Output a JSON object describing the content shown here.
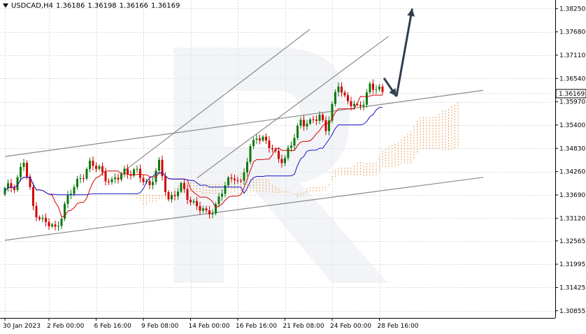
{
  "header": {
    "symbol": "USDCAD,H4",
    "open": "1.36186",
    "high": "1.36198",
    "low": "1.36166",
    "close": "1.36169"
  },
  "chart_data": {
    "type": "candlestick",
    "title": "",
    "y_ticks": [
      "1.38250",
      "1.37680",
      "1.37110",
      "1.36540",
      "1.35970",
      "1.35400",
      "1.34830",
      "1.34260",
      "1.33690",
      "1.33120",
      "1.32565",
      "1.31995",
      "1.31425",
      "1.30855"
    ],
    "ylim": [
      1.3068,
      1.3846
    ],
    "current_price": "1.36169",
    "x_ticks": [
      "30 Jan 2023",
      "2 Feb 00:00",
      "6 Feb 16:00",
      "9 Feb 08:00",
      "14 Feb 00:00",
      "16 Feb 16:00",
      "21 Feb 08:00",
      "24 Feb 00:00",
      "28 Feb 16:00"
    ],
    "n_bars": 121,
    "anchors": [
      [
        0,
        1.338
      ],
      [
        3,
        1.3395
      ],
      [
        6,
        1.345
      ],
      [
        9,
        1.334
      ],
      [
        12,
        1.3305
      ],
      [
        16,
        1.3285
      ],
      [
        20,
        1.336
      ],
      [
        24,
        1.3415
      ],
      [
        27,
        1.344
      ],
      [
        30,
        1.3435
      ],
      [
        34,
        1.3395
      ],
      [
        38,
        1.343
      ],
      [
        42,
        1.342
      ],
      [
        46,
        1.3395
      ],
      [
        49,
        1.344
      ],
      [
        52,
        1.336
      ],
      [
        56,
        1.3385
      ],
      [
        60,
        1.335
      ],
      [
        64,
        1.332
      ],
      [
        67,
        1.3345
      ],
      [
        70,
        1.339
      ],
      [
        73,
        1.342
      ],
      [
        75,
        1.3395
      ],
      [
        78,
        1.348
      ],
      [
        80,
        1.352
      ],
      [
        83,
        1.3495
      ],
      [
        86,
        1.347
      ],
      [
        89,
        1.3455
      ],
      [
        91,
        1.349
      ],
      [
        94,
        1.3555
      ],
      [
        97,
        1.354
      ],
      [
        100,
        1.3565
      ],
      [
        102,
        1.3535
      ],
      [
        104,
        1.358
      ],
      [
        106,
        1.364
      ],
      [
        108,
        1.361
      ],
      [
        110,
        1.3595
      ],
      [
        112,
        1.3575
      ],
      [
        114,
        1.36
      ],
      [
        116,
        1.364
      ],
      [
        119,
        1.362
      ],
      [
        120,
        1.36169
      ]
    ],
    "overlay_lines": [
      {
        "name": "",
        "color": "#d80000",
        "comment": ""
      },
      {
        "name": "",
        "color": "#1515c8",
        "comment": ""
      }
    ],
    "cloud_color": "#e68a2e",
    "trend_lines": [
      {
        "from": [
          0,
          1.3463
        ],
        "to": [
          112,
          1.3603
        ]
      },
      {
        "from": [
          0,
          1.3258
        ],
        "to": [
          112,
          1.339
        ]
      },
      {
        "from": [
          38,
          1.3428
        ],
        "to": [
          88,
          1.3762
        ]
      },
      {
        "from": [
          61,
          1.341
        ],
        "to": [
          113,
          1.3745
        ]
      }
    ],
    "forecast_arrow": {
      "points": [
        [
          86,
          1.3655
        ],
        [
          90,
          1.361
        ],
        [
          95,
          1.3825
        ]
      ],
      "color": "#2f3e4d"
    },
    "candle_colors": {
      "up": "#0a7a0a",
      "down": "#d40000"
    }
  },
  "watermark": "R"
}
